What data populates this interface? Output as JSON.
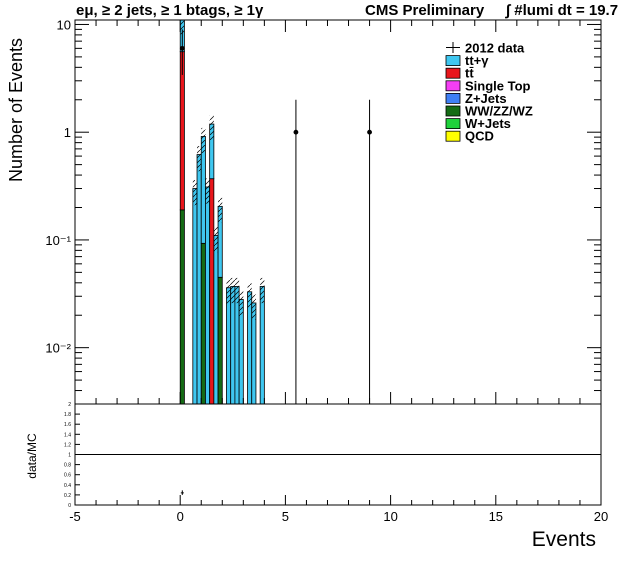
{
  "header": {
    "selection": "eμ, ≥ 2 jets, ≥ 1 btags, ≥ 1γ",
    "experiment": "CMS Preliminary",
    "lumi": "∫ #lumi dt = 19.7"
  },
  "chart_data": [
    {
      "type": "bar",
      "stacked": true,
      "ylabel": "Number of Events",
      "yscale": "log",
      "xlim": [
        -5,
        20
      ],
      "ylim": [
        0.003,
        11
      ],
      "y_tick_labels": [
        "10",
        "1",
        "10⁻¹",
        "10⁻²"
      ],
      "bin_width": 0.2,
      "legend_position": "top-right",
      "legend": [
        "2012 data",
        "tt+γ",
        "tt̄",
        "Single Top",
        "Z+Jets",
        "WW/ZZ/WZ",
        "W+Jets",
        "QCD"
      ],
      "series_colors": {
        "tt+γ": "#3fc7f0",
        "tt̄": "#e8161c",
        "Single Top": "#f53ef5",
        "Z+Jets": "#3f7ff5",
        "WW/ZZ/WZ": "#156b15",
        "W+Jets": "#1fd23b",
        "QCD": "#ffff00"
      },
      "stack": [
        {
          "x": 0.0,
          "components": {
            "WW/ZZ/WZ": 0.19,
            "tt̄": 5.4,
            "tt+γ": 6.0
          }
        },
        {
          "x": 0.6,
          "components": {
            "tt+γ": 0.3
          }
        },
        {
          "x": 0.8,
          "components": {
            "tt+γ": 0.62
          }
        },
        {
          "x": 1.0,
          "components": {
            "WW/ZZ/WZ": 0.093,
            "tt+γ": 0.82
          }
        },
        {
          "x": 1.2,
          "components": {
            "tt+γ": 0.31
          }
        },
        {
          "x": 1.4,
          "components": {
            "tt̄": 0.37,
            "tt+γ": 0.82
          }
        },
        {
          "x": 1.6,
          "components": {
            "tt+γ": 0.11
          }
        },
        {
          "x": 1.8,
          "components": {
            "WW/ZZ/WZ": 0.045,
            "tt+γ": 0.16
          }
        },
        {
          "x": 2.2,
          "components": {
            "tt+γ": 0.036
          }
        },
        {
          "x": 2.4,
          "components": {
            "tt+γ": 0.037
          }
        },
        {
          "x": 2.6,
          "components": {
            "tt+γ": 0.037
          }
        },
        {
          "x": 2.8,
          "components": {
            "tt+γ": 0.028
          }
        },
        {
          "x": 3.2,
          "components": {
            "tt+γ": 0.033
          }
        },
        {
          "x": 3.4,
          "components": {
            "tt+γ": 0.026
          }
        },
        {
          "x": 3.8,
          "components": {
            "tt+γ": 0.037
          }
        }
      ],
      "data_points": [
        {
          "x": 0.1,
          "y": 6.0,
          "err_low": 3.4,
          "err_high": 9.0
        },
        {
          "x": 5.5,
          "y": 1.0,
          "err_low": 0.003,
          "err_high": 2.0
        },
        {
          "x": 9.0,
          "y": 1.0,
          "err_low": 0.003,
          "err_high": 2.0
        }
      ]
    },
    {
      "type": "scatter",
      "ylabel": "data/MC",
      "xlabel": "Events",
      "xlim": [
        -5,
        20
      ],
      "ylim": [
        0,
        2
      ],
      "x_tick_labels": [
        "-5",
        "0",
        "5",
        "10",
        "15",
        "20"
      ],
      "y_tick_labels": [
        "0",
        "0.2",
        "0.4",
        "0.6",
        "0.8",
        "1",
        "1.2",
        "1.4",
        "1.6",
        "1.8",
        "2"
      ],
      "reference_line": 1,
      "points": [
        {
          "x": 0.1,
          "y": 0.24,
          "err_low": 0.2,
          "err_high": 0.29
        }
      ]
    }
  ]
}
